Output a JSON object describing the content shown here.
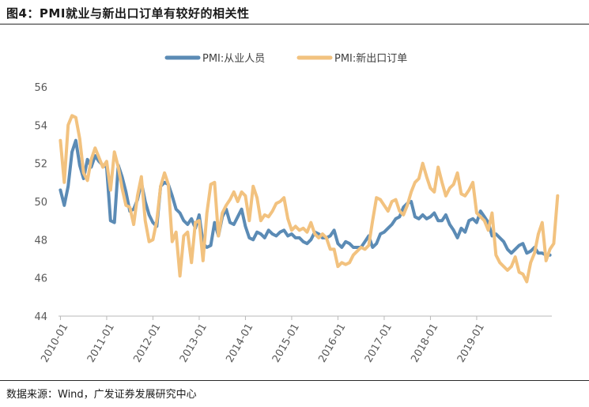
{
  "header": {
    "title": "图4：PMI就业与新出口订单有较好的相关性"
  },
  "footer": {
    "source": "数据来源：Wind，广发证券发展研究中心"
  },
  "colors": {
    "employment": "#5b8bb5",
    "export": "#f2c27f",
    "axis": "#b8b8b8",
    "text": "#595959"
  },
  "chart_data": {
    "type": "line",
    "title": "图4：PMI就业与新出口订单有较好的相关性",
    "xlabel": "",
    "ylabel": "",
    "ylim": [
      44,
      56
    ],
    "yticks": [
      44,
      46,
      48,
      50,
      52,
      54,
      56
    ],
    "x_start": "2010-01",
    "x_end": "2019-12",
    "xtick_labels": [
      "2010-01",
      "2011-01",
      "2012-01",
      "2013-01",
      "2014-01",
      "2015-01",
      "2016-01",
      "2017-01",
      "2018-01",
      "2019-01"
    ],
    "legend_position": "top-center",
    "grid": false,
    "series": [
      {
        "name": "PMI:从业人员",
        "values": [
          50.6,
          49.8,
          50.8,
          52.6,
          53.2,
          51.9,
          51.2,
          52.2,
          51.8,
          52.4,
          52.1,
          51.9,
          51.8,
          49.0,
          48.9,
          51.9,
          51.3,
          50.5,
          49.5,
          49.6,
          50.1,
          51.0,
          50.0,
          49.3,
          48.9,
          48.7,
          50.8,
          51.0,
          50.9,
          50.3,
          49.6,
          49.4,
          49.0,
          48.8,
          49.1,
          48.6,
          49.3,
          47.8,
          47.6,
          47.7,
          48.9,
          48.2,
          49.2,
          49.6,
          48.9,
          48.8,
          49.2,
          49.6,
          48.7,
          48.1,
          48.0,
          48.4,
          48.3,
          48.1,
          48.5,
          48.3,
          48.2,
          48.4,
          48.5,
          48.2,
          48.3,
          48.1,
          48.1,
          47.9,
          47.8,
          48.0,
          48.4,
          48.3,
          48.1,
          48.1,
          48.2,
          48.5,
          47.8,
          47.6,
          47.9,
          47.8,
          47.6,
          47.6,
          47.6,
          47.9,
          48.2,
          47.6,
          47.8,
          48.3,
          48.4,
          48.6,
          48.8,
          49.1,
          49.2,
          49.7,
          49.9,
          50.0,
          49.2,
          49.1,
          49.3,
          49.1,
          49.2,
          49.4,
          49.0,
          49.0,
          49.3,
          48.8,
          48.5,
          48.1,
          48.6,
          48.4,
          49.0,
          49.1,
          48.9,
          49.5,
          49.2,
          48.9,
          48.2,
          48.3,
          48.1,
          47.9,
          47.5,
          47.3,
          47.5,
          47.7,
          47.8,
          47.3,
          47.4,
          47.6,
          47.3,
          47.3,
          47.2,
          47.2
        ]
      },
      {
        "name": "PMI:新出口订单",
        "values": [
          53.2,
          51.0,
          54.0,
          54.5,
          54.4,
          53.3,
          51.5,
          51.1,
          52.2,
          52.8,
          52.3,
          51.8,
          52.1,
          50.6,
          52.6,
          51.8,
          50.7,
          49.8,
          49.7,
          48.8,
          50.3,
          51.3,
          49.0,
          47.9,
          48.0,
          49.0,
          50.8,
          51.5,
          50.9,
          47.9,
          48.4,
          46.1,
          48.2,
          48.4,
          46.8,
          48.9,
          49.0,
          46.9,
          49.4,
          50.9,
          51.0,
          48.2,
          49.4,
          49.8,
          50.1,
          50.5,
          50.0,
          50.5,
          50.3,
          49.0,
          50.8,
          50.2,
          49.0,
          49.3,
          49.2,
          49.5,
          49.9,
          50.0,
          50.2,
          49.1,
          48.5,
          48.7,
          48.5,
          48.6,
          48.4,
          48.9,
          48.3,
          48.1,
          48.3,
          48.1,
          47.5,
          47.5,
          46.6,
          46.8,
          46.7,
          46.8,
          47.2,
          47.4,
          47.6,
          47.5,
          47.7,
          49.0,
          50.2,
          50.1,
          49.8,
          49.5,
          50.0,
          50.1,
          49.5,
          49.3,
          49.8,
          50.5,
          51.0,
          51.2,
          52.0,
          51.3,
          50.7,
          50.5,
          51.8,
          51.0,
          50.3,
          50.7,
          50.9,
          51.5,
          50.4,
          50.3,
          50.6,
          51.0,
          49.4,
          49.2,
          49.0,
          48.5,
          49.4,
          47.2,
          46.8,
          46.6,
          46.4,
          46.6,
          47.1,
          46.3,
          46.2,
          45.8,
          46.8,
          47.3,
          48.3,
          48.9,
          46.9,
          47.5,
          47.8,
          50.3
        ]
      }
    ]
  }
}
